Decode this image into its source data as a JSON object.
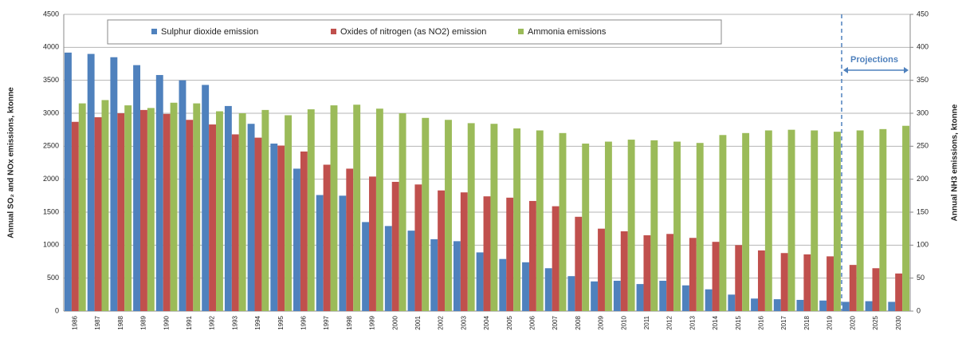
{
  "chart_data": {
    "type": "bar",
    "y_axis_title": "Annual SO₂ and NOx emissions, ktonne",
    "y2_axis_title": "Annual NH3 emissions, ktonne",
    "annotation": "Projections",
    "categories": [
      "1986",
      "1987",
      "1988",
      "1989",
      "1990",
      "1991",
      "1992",
      "1993",
      "1994",
      "1995",
      "1996",
      "1997",
      "1998",
      "1999",
      "2000",
      "2001",
      "2002",
      "2003",
      "2004",
      "2005",
      "2006",
      "2007",
      "2008",
      "2009",
      "2010",
      "2011",
      "2012",
      "2013",
      "2014",
      "2015",
      "2016",
      "2017",
      "2018",
      "2019",
      "2020",
      "2025",
      "2030"
    ],
    "series": [
      {
        "name": "Sulphur dioxide emission",
        "color": "#4f81bd",
        "values": [
          3920,
          3900,
          3850,
          3730,
          3580,
          3500,
          3430,
          3110,
          2840,
          2540,
          2160,
          1760,
          1750,
          1350,
          1290,
          1220,
          1090,
          1060,
          890,
          790,
          740,
          650,
          530,
          450,
          460,
          410,
          460,
          390,
          330,
          250,
          190,
          180,
          170,
          160,
          140,
          150,
          140
        ]
      },
      {
        "name": "Oxides of nitrogen (as NO2) emission",
        "color": "#c0504d",
        "values": [
          2870,
          2940,
          3000,
          3050,
          2990,
          2900,
          2830,
          2680,
          2630,
          2510,
          2420,
          2220,
          2160,
          2040,
          1960,
          1920,
          1830,
          1800,
          1740,
          1720,
          1670,
          1590,
          1430,
          1250,
          1210,
          1150,
          1170,
          1110,
          1050,
          1000,
          920,
          880,
          860,
          830,
          700,
          650,
          570
        ]
      },
      {
        "name": "Ammonia emissions",
        "color": "#9bbb59",
        "axis": "y2",
        "values": [
          315,
          320,
          312,
          308,
          316,
          315,
          303,
          300,
          305,
          297,
          306,
          312,
          313,
          307,
          300,
          293,
          290,
          285,
          284,
          277,
          274,
          270,
          254,
          257,
          260,
          259,
          257,
          255,
          267,
          270,
          274,
          275,
          274,
          272,
          274,
          276,
          281
        ]
      }
    ],
    "ylim": [
      0,
      4500
    ],
    "yticks": [
      0,
      500,
      1000,
      1500,
      2000,
      2500,
      3000,
      3500,
      4000,
      4500
    ],
    "y2lim": [
      0,
      450
    ],
    "y2ticks": [
      0,
      50,
      100,
      150,
      200,
      250,
      300,
      350,
      400,
      450
    ],
    "grid": true
  }
}
